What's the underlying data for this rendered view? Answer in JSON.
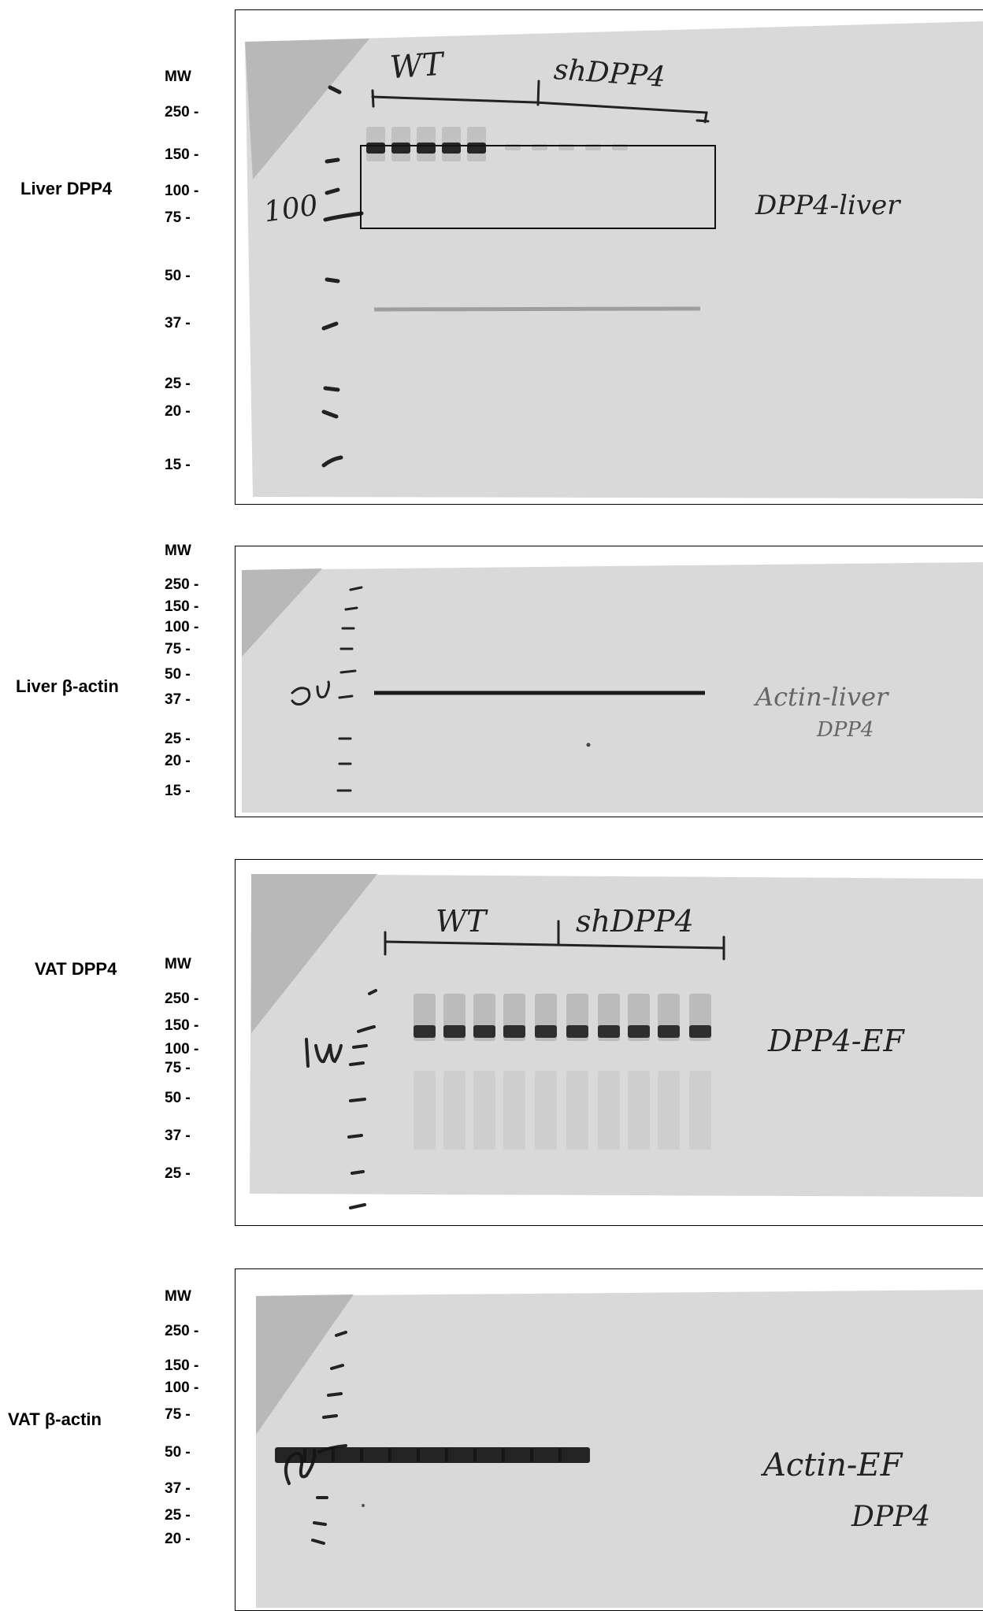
{
  "panels": [
    {
      "label": "Liver DPP4",
      "mw": [
        "MW",
        "250 -",
        "150 -",
        "100 -",
        "75 -",
        "50 -",
        "37 -",
        "25 -",
        "20 -",
        "15 -"
      ],
      "notes": {
        "wt": "WT",
        "sh": "shDPP4",
        "marker": "100",
        "right": "DPP4-liver"
      }
    },
    {
      "label": "Liver β-actin",
      "mw": [
        "MW",
        "250 -",
        "150 -",
        "100 -",
        "75 -",
        "50 -",
        "37 -",
        "25 -",
        "20 -",
        "15 -"
      ],
      "notes": {
        "marker": "50",
        "right1": "Actin-liver",
        "right2": "DPP4"
      }
    },
    {
      "label": "VAT DPP4",
      "mw": [
        "MW",
        "250 -",
        "150 -",
        "100 -",
        "75 -",
        "50 -",
        "37 -",
        "25 -"
      ],
      "notes": {
        "wt": "WT",
        "sh": "shDPP4",
        "marker": "100",
        "right": "DPP4-EF"
      }
    },
    {
      "label": "VAT β-actin",
      "mw": [
        "MW",
        "250 -",
        "150 -",
        "100 -",
        "75 -",
        "50 -",
        "37 -",
        "25 -",
        "20 -"
      ],
      "notes": {
        "marker": "50",
        "right1": "Actin-EF",
        "right2": "DPP4"
      }
    }
  ],
  "colors": {
    "membrane": "#d9d9d9",
    "corner": "#b8b8b8",
    "band": "#1a1a1a",
    "frame": "#000000"
  }
}
